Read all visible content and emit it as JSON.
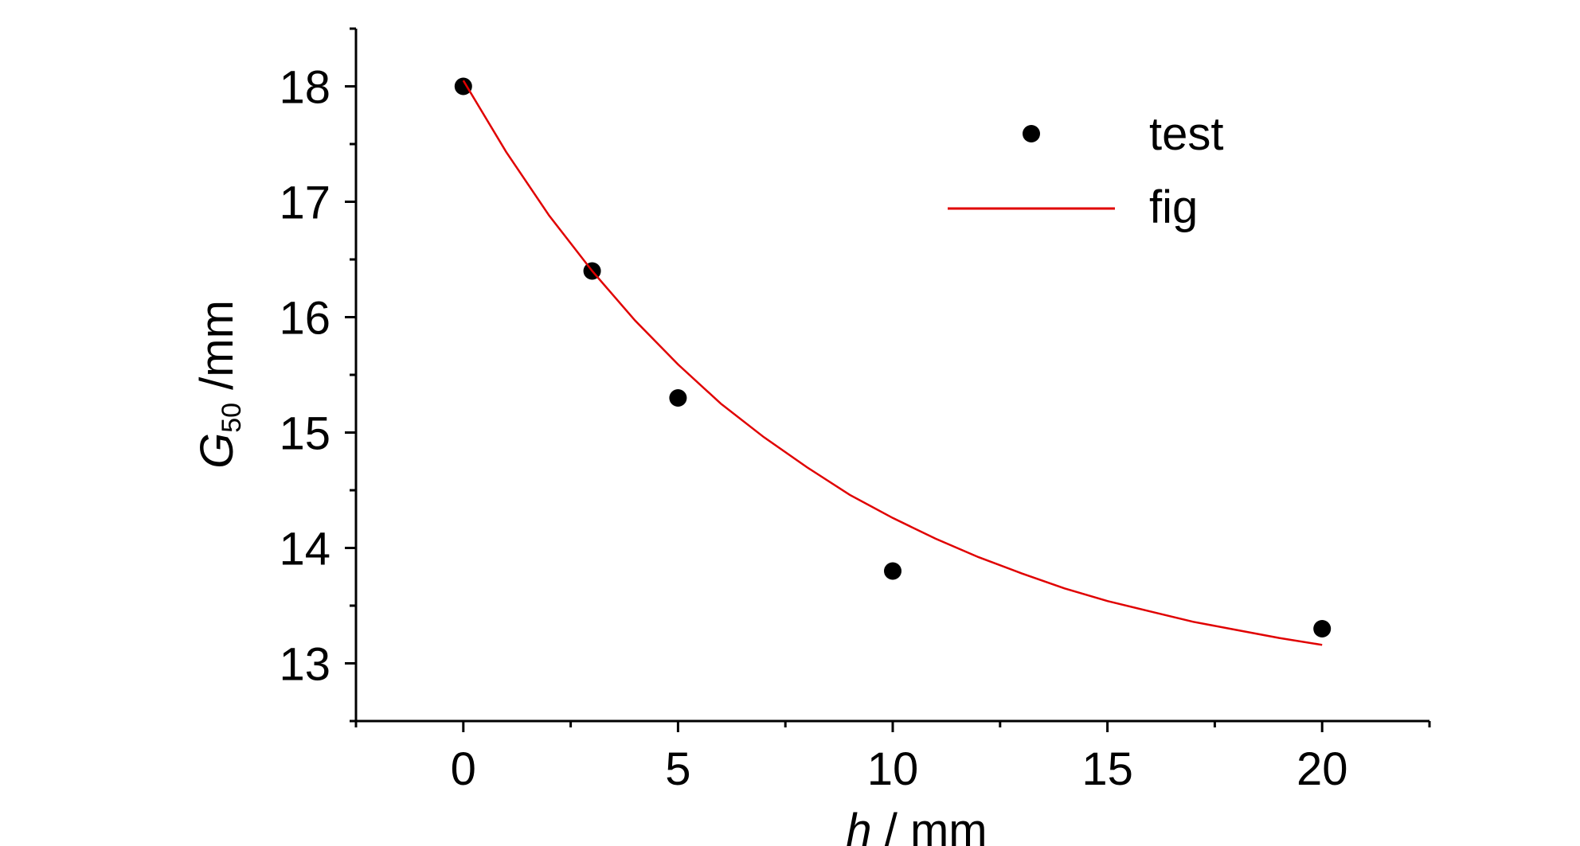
{
  "chart_data": {
    "type": "scatter",
    "xlabel": {
      "var": "h",
      "rest": " / mm"
    },
    "ylabel": {
      "var": "G",
      "sub": "50",
      "rest": " /mm"
    },
    "xlim": [
      -2.5,
      22.5
    ],
    "ylim": [
      12.5,
      18.5
    ],
    "x_ticks": [
      0,
      5,
      10,
      15,
      20
    ],
    "y_ticks": [
      13,
      14,
      15,
      16,
      17,
      18
    ],
    "legend": {
      "position": "top-right",
      "items": [
        "test",
        "fig"
      ]
    },
    "series": [
      {
        "name": "test",
        "kind": "scatter",
        "color": "#000000",
        "x": [
          0,
          3,
          5,
          10,
          20
        ],
        "y": [
          18.0,
          16.4,
          15.3,
          13.8,
          13.3
        ]
      },
      {
        "name": "fig",
        "kind": "line",
        "color": "#e00000",
        "x": [
          0,
          1,
          2,
          3,
          4,
          5,
          6,
          7,
          8,
          9,
          10,
          11,
          12,
          13,
          14,
          15,
          16,
          17,
          18,
          19,
          20
        ],
        "y": [
          18.05,
          17.43,
          16.88,
          16.4,
          15.97,
          15.59,
          15.25,
          14.96,
          14.7,
          14.46,
          14.26,
          14.08,
          13.92,
          13.78,
          13.65,
          13.54,
          13.45,
          13.36,
          13.29,
          13.22,
          13.16
        ]
      }
    ]
  }
}
